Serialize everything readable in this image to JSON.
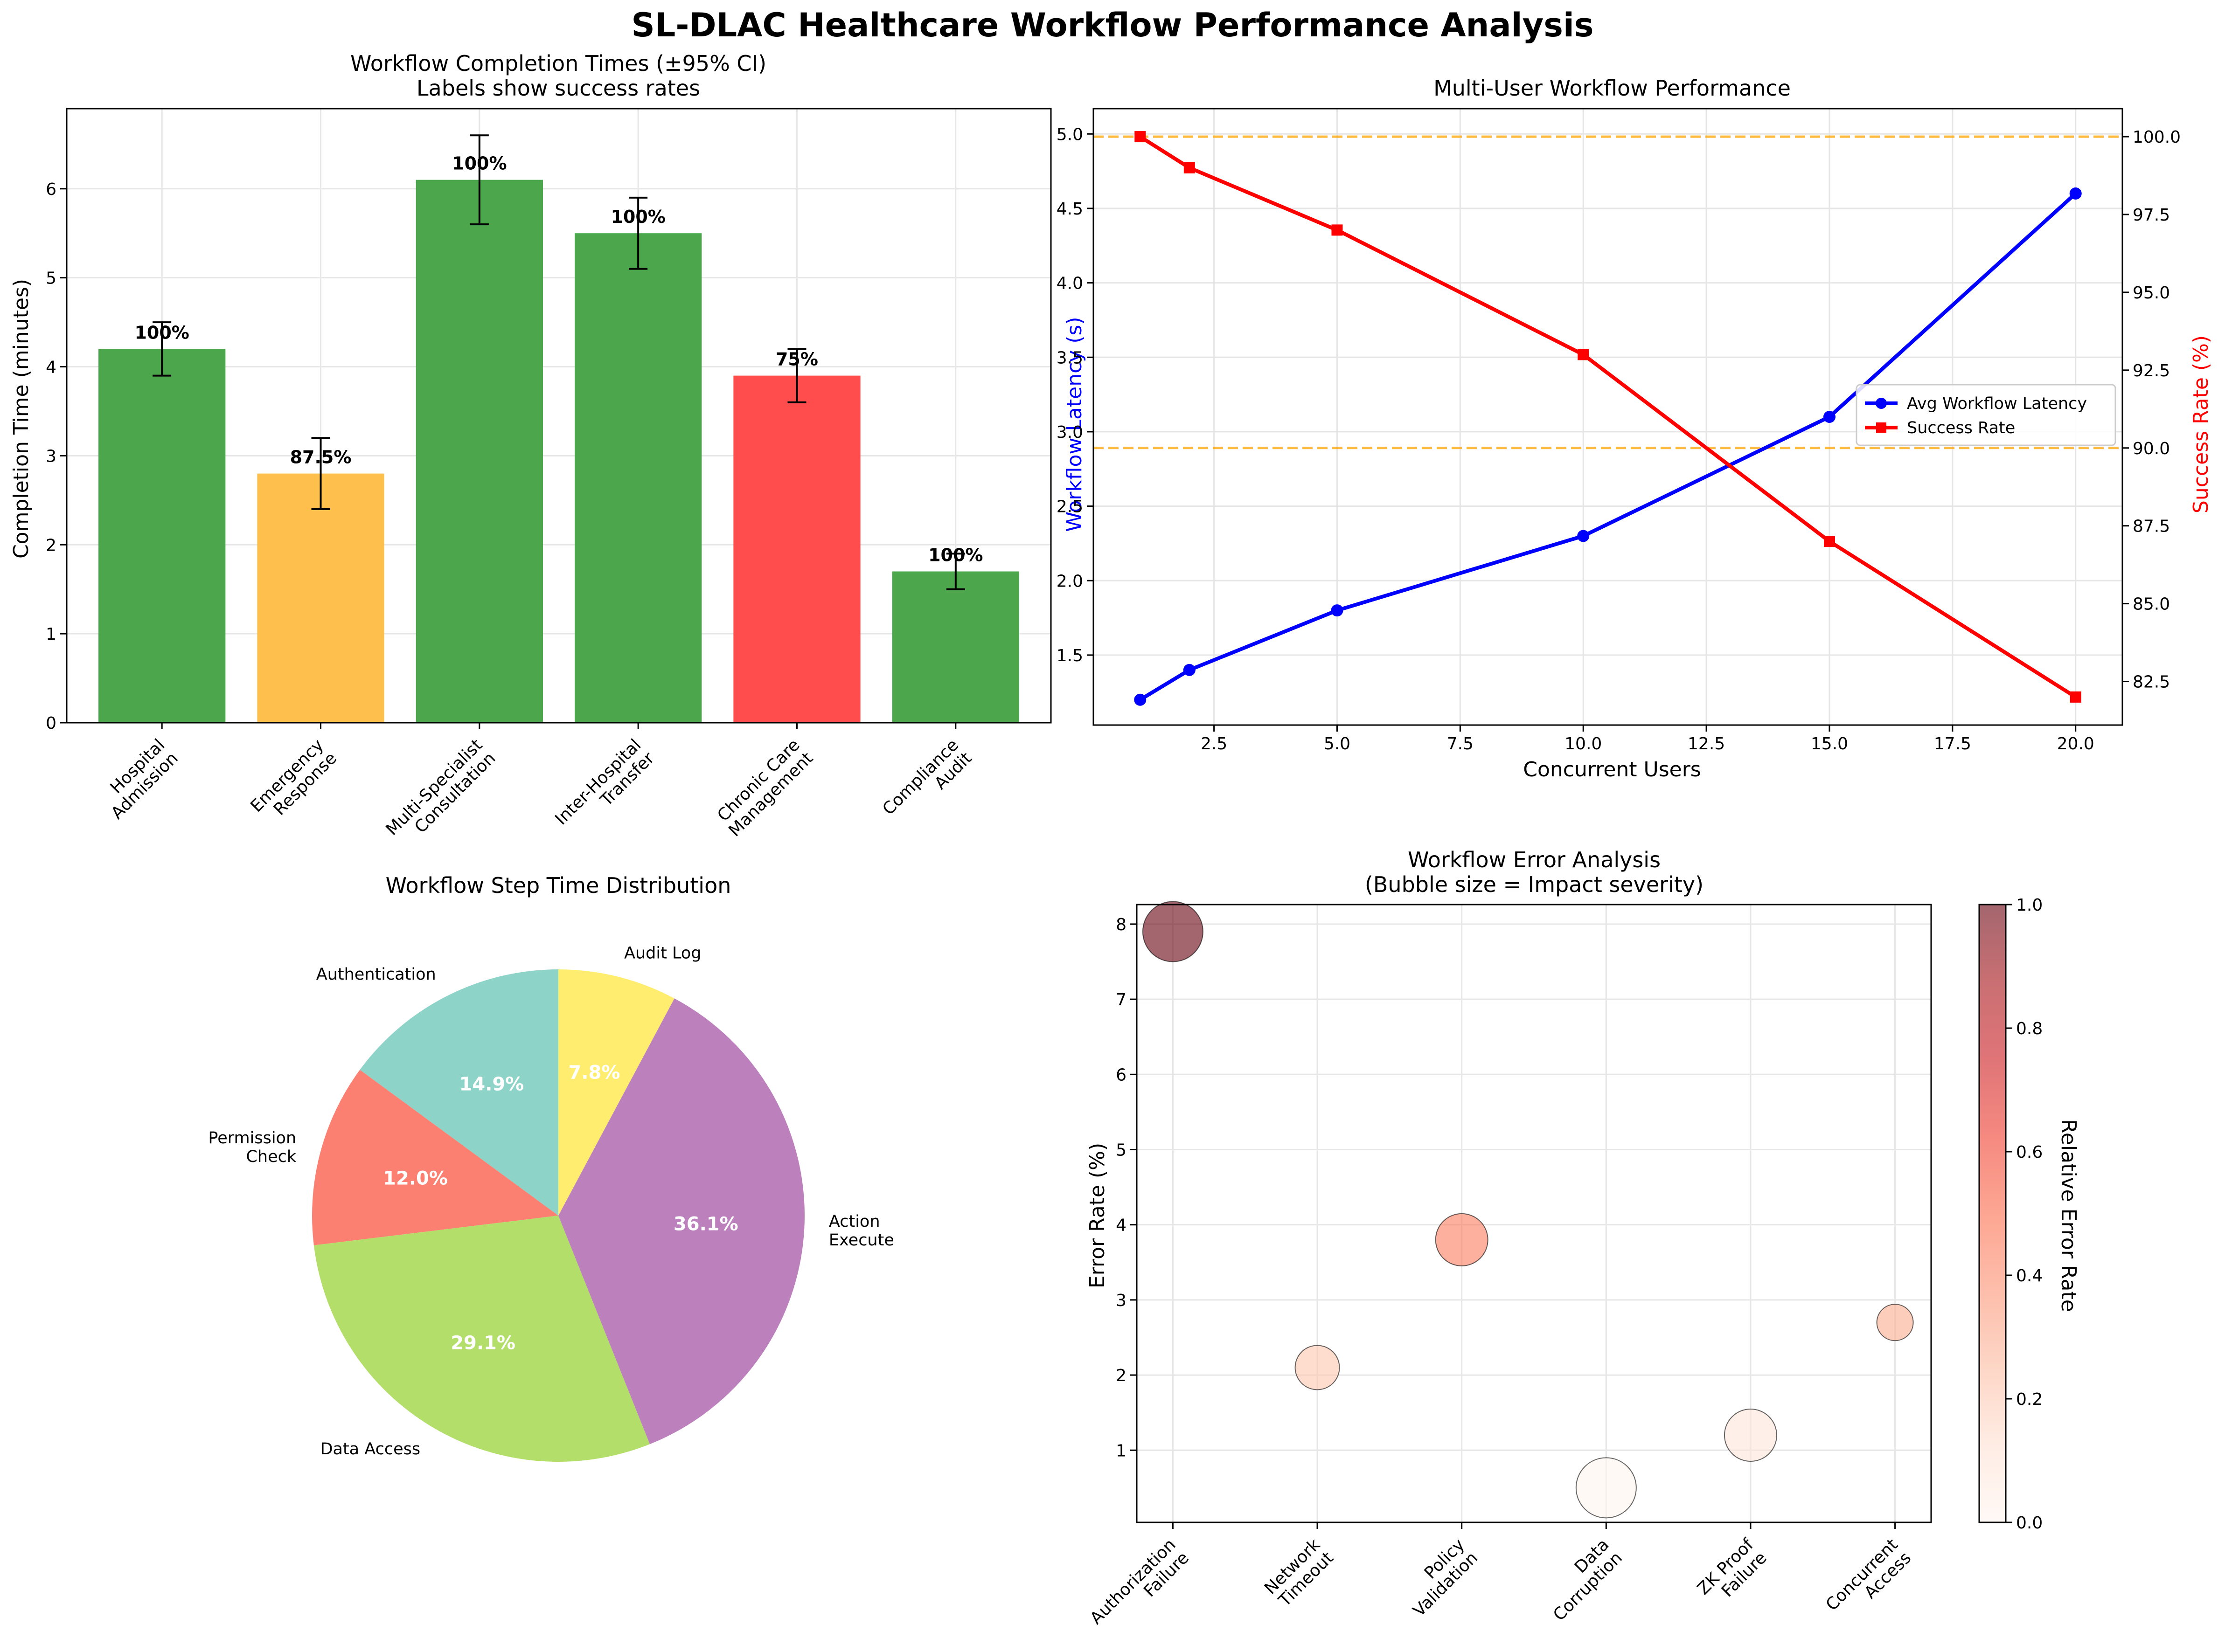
{
  "figure_title": "SL-DLAC Healthcare Workflow Performance Analysis",
  "chart_data": [
    {
      "type": "bar",
      "title": "Workflow Completion Times (±95% CI)",
      "subtitle": "Labels show success rates",
      "ylabel": "Completion Time (minutes)",
      "xlabel": "",
      "ylim": [
        0,
        6.9
      ],
      "yticks": [
        "0",
        "1",
        "2",
        "3",
        "4",
        "5",
        "6"
      ],
      "categories": [
        "Hospital\nAdmission",
        "Emergency\nResponse",
        "Multi-Specialist\nConsultation",
        "Inter-Hospital\nTransfer",
        "Chronic Care\nManagement",
        "Compliance\nAudit"
      ],
      "values": [
        4.2,
        2.8,
        6.1,
        5.5,
        3.9,
        1.7
      ],
      "ci": [
        0.3,
        0.4,
        0.5,
        0.4,
        0.3,
        0.2
      ],
      "labels": [
        "100%",
        "87.5%",
        "100%",
        "100%",
        "75%",
        "100%"
      ],
      "colors": [
        "#4ca64c",
        "#ffbf4c",
        "#4ca64c",
        "#4ca64c",
        "#ff4c4c",
        "#4ca64c"
      ],
      "grid": true
    },
    {
      "type": "line",
      "title": "Multi-User Workflow Performance",
      "xlabel": "Concurrent Users",
      "ylabel": "Workflow Latency (s)",
      "ylabel_right": "Success Rate (%)",
      "x": [
        1,
        2,
        5,
        10,
        15,
        20
      ],
      "xlim": [
        0.05,
        20.95
      ],
      "xticks": [
        "2.5",
        "5.0",
        "7.5",
        "10.0",
        "12.5",
        "15.0",
        "17.5",
        "20.0"
      ],
      "ylim": [
        1.03,
        5.17
      ],
      "yticks": [
        "1.5",
        "2.0",
        "2.5",
        "3.0",
        "3.5",
        "4.0",
        "4.5",
        "5.0"
      ],
      "ylim_right": [
        81.1,
        100.9
      ],
      "yticks_right": [
        "82.5",
        "85.0",
        "87.5",
        "90.0",
        "92.5",
        "95.0",
        "97.5",
        "100.0"
      ],
      "series": [
        {
          "name": "Avg Workflow Latency",
          "axis": "left",
          "values": [
            1.2,
            1.4,
            1.8,
            2.3,
            3.1,
            4.6
          ],
          "color": "#0000ff",
          "marker": "circle"
        },
        {
          "name": "Success Rate",
          "axis": "right",
          "values": [
            100,
            99,
            97,
            93,
            87,
            82
          ],
          "color": "#ff0000",
          "marker": "square"
        }
      ],
      "reference_lines_right": [
        100,
        90
      ],
      "reference_color": "#ffa500",
      "legend_position": "center-right",
      "grid": true
    },
    {
      "type": "pie",
      "title": "Workflow Step Time Distribution",
      "labels": [
        "Authentication",
        "Permission\nCheck",
        "Data Access",
        "Action\nExecute",
        "Audit Log"
      ],
      "values": [
        14.9,
        12.0,
        29.1,
        36.1,
        7.8
      ],
      "pct_labels": [
        "14.9%",
        "12.0%",
        "29.1%",
        "36.1%",
        "7.8%"
      ],
      "colors": [
        "#8dd3c7",
        "#fb8072",
        "#b3de69",
        "#bc80bd",
        "#ffed6f"
      ]
    },
    {
      "type": "scatter",
      "title": "Workflow Error Analysis",
      "subtitle": "(Bubble size = Impact severity)",
      "ylabel": "Error Rate (%)",
      "xlabel": "",
      "categories": [
        "Authorization\nFailure",
        "Network\nTimeout",
        "Policy\nValidation",
        "Data\nCorruption",
        "ZK Proof\nFailure",
        "Concurrent\nAccess"
      ],
      "values": [
        7.9,
        2.1,
        3.8,
        0.5,
        1.2,
        2.7
      ],
      "severity": [
        5,
        3,
        4,
        5,
        4,
        2
      ],
      "relative_error": [
        1.0,
        0.216,
        0.446,
        0.0,
        0.095,
        0.297
      ],
      "ylim": [
        0.04,
        8.26
      ],
      "yticks": [
        "1",
        "2",
        "3",
        "4",
        "5",
        "6",
        "7",
        "8"
      ],
      "colorbar_label": "Relative Error Rate",
      "colorbar_ticks": [
        "0.0",
        "0.2",
        "0.4",
        "0.6",
        "0.8",
        "1.0"
      ],
      "colormap": "Reds",
      "grid": true
    }
  ]
}
